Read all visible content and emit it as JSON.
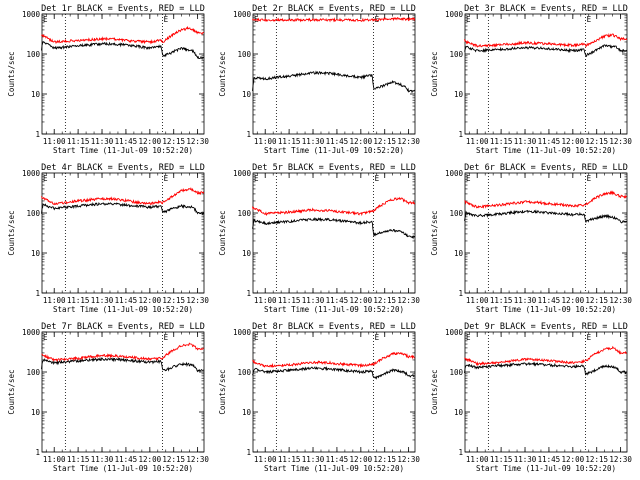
{
  "colors": {
    "background": "#ffffff",
    "axes": "#000000",
    "events": "#000000",
    "lld": "#ff0000"
  },
  "chart_data": [
    {
      "type": "line",
      "panel": "det-1r",
      "title": "Det 1r BLACK = Events, RED = LLD",
      "xlabel": "Start Time (11-Jul-09 10:52:20)",
      "ylabel": "Counts/sec",
      "x_ticks": [
        "11:00",
        "11:15",
        "11:30",
        "11:45",
        "12:00",
        "12:15",
        "12:30"
      ],
      "y_ticks": [
        "1",
        "10",
        "100",
        "1000"
      ],
      "y_scale": "log",
      "ylim": [
        1,
        1000
      ],
      "xlim": [
        "10:52:20",
        "12:34"
      ],
      "dotted_vlines": [
        "11:07",
        "12:08"
      ],
      "marker": "E",
      "series": [
        {
          "name": "Events",
          "color": "#000000",
          "x": [
            "10:52",
            "10:53",
            "11:00",
            "11:15",
            "11:30",
            "11:40",
            "11:50",
            "12:00",
            "12:07",
            "12:08",
            "12:12",
            "12:20",
            "12:27",
            "12:30"
          ],
          "y": [
            130,
            200,
            140,
            160,
            180,
            175,
            160,
            140,
            155,
            90,
            100,
            140,
            120,
            80
          ]
        },
        {
          "name": "LLD",
          "color": "#ff0000",
          "x": [
            "10:52",
            "10:53",
            "11:00",
            "11:15",
            "11:30",
            "11:40",
            "11:50",
            "12:00",
            "12:07",
            "12:08",
            "12:12",
            "12:20",
            "12:25",
            "12:30"
          ],
          "y": [
            300,
            280,
            200,
            220,
            240,
            230,
            210,
            200,
            220,
            190,
            260,
            400,
            450,
            330
          ]
        }
      ]
    },
    {
      "type": "line",
      "panel": "det-2r",
      "title": "Det 2r BLACK = Events, RED = LLD",
      "xlabel": "Start Time (11-Jul-09 10:52:20)",
      "ylabel": "Counts/sec",
      "x_ticks": [
        "11:00",
        "11:15",
        "11:30",
        "11:45",
        "12:00",
        "12:15",
        "12:30"
      ],
      "y_ticks": [
        "1",
        "10",
        "100",
        "1000"
      ],
      "y_scale": "log",
      "ylim": [
        1,
        1000
      ],
      "xlim": [
        "10:52:20",
        "12:34"
      ],
      "dotted_vlines": [
        "11:07",
        "12:08"
      ],
      "marker": "E",
      "series": [
        {
          "name": "Events",
          "color": "#000000",
          "x": [
            "10:52",
            "10:53",
            "11:00",
            "11:15",
            "11:30",
            "11:40",
            "11:50",
            "12:00",
            "12:07",
            "12:08",
            "12:12",
            "12:20",
            "12:27",
            "12:30"
          ],
          "y": [
            12,
            25,
            24,
            28,
            34,
            33,
            29,
            26,
            30,
            14,
            15,
            20,
            16,
            12
          ]
        },
        {
          "name": "LLD",
          "color": "#ff0000",
          "x": [
            "10:52",
            "10:53",
            "11:00",
            "11:15",
            "11:30",
            "11:40",
            "11:50",
            "12:00",
            "12:07",
            "12:08",
            "12:12",
            "12:20",
            "12:25",
            "12:30"
          ],
          "y": [
            750,
            720,
            700,
            710,
            715,
            710,
            705,
            700,
            710,
            700,
            720,
            760,
            770,
            740
          ]
        }
      ]
    },
    {
      "type": "line",
      "panel": "det-3r",
      "title": "Det 3r BLACK = Events, RED = LLD",
      "xlabel": "Start Time (11-Jul-09 10:52:20)",
      "ylabel": "Counts/sec",
      "x_ticks": [
        "11:00",
        "11:15",
        "11:30",
        "11:45",
        "12:00",
        "12:15",
        "12:30"
      ],
      "y_ticks": [
        "1",
        "10",
        "100",
        "1000"
      ],
      "y_scale": "log",
      "ylim": [
        1,
        1000
      ],
      "xlim": [
        "10:52:20",
        "12:34"
      ],
      "dotted_vlines": [
        "11:07",
        "12:08"
      ],
      "marker": "E",
      "series": [
        {
          "name": "Events",
          "color": "#000000",
          "x": [
            "10:52",
            "10:53",
            "11:00",
            "11:15",
            "11:30",
            "11:40",
            "11:50",
            "12:00",
            "12:07",
            "12:08",
            "12:12",
            "12:20",
            "12:27",
            "12:30"
          ],
          "y": [
            110,
            150,
            120,
            130,
            145,
            140,
            130,
            120,
            130,
            90,
            110,
            160,
            150,
            120
          ]
        },
        {
          "name": "LLD",
          "color": "#ff0000",
          "x": [
            "10:52",
            "10:53",
            "11:00",
            "11:15",
            "11:30",
            "11:40",
            "11:50",
            "12:00",
            "12:07",
            "12:08",
            "12:12",
            "12:20",
            "12:25",
            "12:30"
          ],
          "y": [
            220,
            200,
            160,
            170,
            190,
            185,
            175,
            165,
            180,
            160,
            190,
            280,
            300,
            240
          ]
        }
      ]
    },
    {
      "type": "line",
      "panel": "det-4r",
      "title": "Det 4r BLACK = Events, RED = LLD",
      "xlabel": "Start Time (11-Jul-09 10:52:20)",
      "ylabel": "Counts/sec",
      "x_ticks": [
        "11:00",
        "11:15",
        "11:30",
        "11:45",
        "12:00",
        "12:15",
        "12:30"
      ],
      "y_ticks": [
        "1",
        "10",
        "100",
        "1000"
      ],
      "y_scale": "log",
      "ylim": [
        1,
        1000
      ],
      "xlim": [
        "10:52:20",
        "12:34"
      ],
      "dotted_vlines": [
        "11:07",
        "12:08"
      ],
      "marker": "E",
      "series": [
        {
          "name": "Events",
          "color": "#000000",
          "x": [
            "10:52",
            "10:53",
            "11:00",
            "11:15",
            "11:30",
            "11:40",
            "11:50",
            "12:00",
            "12:07",
            "12:08",
            "12:12",
            "12:20",
            "12:27",
            "12:30"
          ],
          "y": [
            100,
            160,
            130,
            150,
            170,
            165,
            150,
            140,
            150,
            100,
            120,
            150,
            140,
            100
          ]
        },
        {
          "name": "LLD",
          "color": "#ff0000",
          "x": [
            "10:52",
            "10:53",
            "11:00",
            "11:15",
            "11:30",
            "11:40",
            "11:50",
            "12:00",
            "12:07",
            "12:08",
            "12:12",
            "12:20",
            "12:25",
            "12:30"
          ],
          "y": [
            250,
            240,
            170,
            200,
            230,
            220,
            190,
            170,
            190,
            180,
            230,
            360,
            400,
            320
          ]
        }
      ]
    },
    {
      "type": "line",
      "panel": "det-5r",
      "title": "Det 5r BLACK = Events, RED = LLD",
      "xlabel": "Start Time (11-Jul-09 10:52:20)",
      "ylabel": "Counts/sec",
      "x_ticks": [
        "11:00",
        "11:15",
        "11:30",
        "11:45",
        "12:00",
        "12:15",
        "12:30"
      ],
      "y_ticks": [
        "1",
        "10",
        "100",
        "1000"
      ],
      "y_scale": "log",
      "ylim": [
        1,
        1000
      ],
      "xlim": [
        "10:52:20",
        "12:34"
      ],
      "dotted_vlines": [
        "11:07",
        "12:08"
      ],
      "marker": "E",
      "series": [
        {
          "name": "Events",
          "color": "#000000",
          "x": [
            "10:52",
            "10:53",
            "11:00",
            "11:15",
            "11:30",
            "11:40",
            "11:50",
            "12:00",
            "12:07",
            "12:08",
            "12:12",
            "12:20",
            "12:27",
            "12:30"
          ],
          "y": [
            40,
            65,
            55,
            62,
            70,
            68,
            62,
            56,
            62,
            28,
            32,
            38,
            32,
            25
          ]
        },
        {
          "name": "LLD",
          "color": "#ff0000",
          "x": [
            "10:52",
            "10:53",
            "11:00",
            "11:15",
            "11:30",
            "11:40",
            "11:50",
            "12:00",
            "12:07",
            "12:08",
            "12:12",
            "12:20",
            "12:25",
            "12:30"
          ],
          "y": [
            140,
            130,
            95,
            105,
            120,
            115,
            105,
            95,
            110,
            110,
            150,
            220,
            230,
            180
          ]
        }
      ]
    },
    {
      "type": "line",
      "panel": "det-6r",
      "title": "Det 6r BLACK = Events, RED = LLD",
      "xlabel": "Start Time (11-Jul-09 10:52:20)",
      "ylabel": "Counts/sec",
      "x_ticks": [
        "11:00",
        "11:15",
        "11:30",
        "11:45",
        "12:00",
        "12:15",
        "12:30"
      ],
      "y_ticks": [
        "1",
        "10",
        "100",
        "1000"
      ],
      "y_scale": "log",
      "ylim": [
        1,
        1000
      ],
      "xlim": [
        "10:52:20",
        "12:34"
      ],
      "dotted_vlines": [
        "11:07",
        "12:08"
      ],
      "marker": "E",
      "series": [
        {
          "name": "Events",
          "color": "#000000",
          "x": [
            "10:52",
            "10:53",
            "11:00",
            "11:15",
            "11:30",
            "11:40",
            "11:50",
            "12:00",
            "12:07",
            "12:08",
            "12:12",
            "12:20",
            "12:27",
            "12:30"
          ],
          "y": [
            60,
            100,
            85,
            95,
            110,
            105,
            98,
            90,
            95,
            60,
            70,
            85,
            75,
            60
          ]
        },
        {
          "name": "LLD",
          "color": "#ff0000",
          "x": [
            "10:52",
            "10:53",
            "11:00",
            "11:15",
            "11:30",
            "11:40",
            "11:50",
            "12:00",
            "12:07",
            "12:08",
            "12:12",
            "12:20",
            "12:25",
            "12:30"
          ],
          "y": [
            200,
            180,
            140,
            160,
            190,
            180,
            165,
            150,
            160,
            160,
            210,
            300,
            320,
            260
          ]
        }
      ]
    },
    {
      "type": "line",
      "panel": "det-7r",
      "title": "Det 7r BLACK = Events, RED = LLD",
      "xlabel": "Start Time (11-Jul-09 10:52:20)",
      "ylabel": "Counts/sec",
      "x_ticks": [
        "11:00",
        "11:15",
        "11:30",
        "11:45",
        "12:00",
        "12:15",
        "12:30"
      ],
      "y_ticks": [
        "1",
        "10",
        "100",
        "1000"
      ],
      "y_scale": "log",
      "ylim": [
        1,
        1000
      ],
      "xlim": [
        "10:52:20",
        "12:34"
      ],
      "dotted_vlines": [
        "11:07",
        "12:08"
      ],
      "marker": "E",
      "series": [
        {
          "name": "Events",
          "color": "#000000",
          "x": [
            "10:52",
            "10:53",
            "11:00",
            "11:15",
            "11:30",
            "11:40",
            "11:50",
            "12:00",
            "12:07",
            "12:08",
            "12:12",
            "12:20",
            "12:27",
            "12:30"
          ],
          "y": [
            120,
            200,
            170,
            190,
            210,
            205,
            190,
            175,
            185,
            110,
            120,
            160,
            150,
            110
          ]
        },
        {
          "name": "LLD",
          "color": "#ff0000",
          "x": [
            "10:52",
            "10:53",
            "11:00",
            "11:15",
            "11:30",
            "11:40",
            "11:50",
            "12:00",
            "12:07",
            "12:08",
            "12:12",
            "12:20",
            "12:25",
            "12:30"
          ],
          "y": [
            280,
            260,
            200,
            220,
            260,
            250,
            230,
            210,
            225,
            220,
            300,
            450,
            500,
            380
          ]
        }
      ]
    },
    {
      "type": "line",
      "panel": "det-8r",
      "title": "Det 8r BLACK = Events, RED = LLD",
      "xlabel": "Start Time (11-Jul-09 10:52:20)",
      "ylabel": "Counts/sec",
      "x_ticks": [
        "11:00",
        "11:15",
        "11:30",
        "11:45",
        "12:00",
        "12:15",
        "12:30"
      ],
      "y_ticks": [
        "1",
        "10",
        "100",
        "1000"
      ],
      "y_scale": "log",
      "ylim": [
        1,
        1000
      ],
      "xlim": [
        "10:52:20",
        "12:34"
      ],
      "dotted_vlines": [
        "11:07",
        "12:08"
      ],
      "marker": "E",
      "series": [
        {
          "name": "Events",
          "color": "#000000",
          "x": [
            "10:52",
            "10:53",
            "11:00",
            "11:15",
            "11:30",
            "11:40",
            "11:50",
            "12:00",
            "12:07",
            "12:08",
            "12:12",
            "12:20",
            "12:27",
            "12:30"
          ],
          "y": [
            80,
            120,
            100,
            110,
            125,
            120,
            110,
            100,
            105,
            70,
            80,
            110,
            100,
            80
          ]
        },
        {
          "name": "LLD",
          "color": "#ff0000",
          "x": [
            "10:52",
            "10:53",
            "11:00",
            "11:15",
            "11:30",
            "11:40",
            "11:50",
            "12:00",
            "12:07",
            "12:08",
            "12:12",
            "12:20",
            "12:25",
            "12:30"
          ],
          "y": [
            200,
            180,
            140,
            150,
            175,
            170,
            155,
            145,
            155,
            155,
            200,
            280,
            300,
            240
          ]
        }
      ]
    },
    {
      "type": "line",
      "panel": "det-9r",
      "title": "Det 9r BLACK = Events, RED = LLD",
      "xlabel": "Start Time (11-Jul-09 10:52:20)",
      "ylabel": "Counts/sec",
      "x_ticks": [
        "11:00",
        "11:15",
        "11:30",
        "11:45",
        "12:00",
        "12:15",
        "12:30"
      ],
      "y_ticks": [
        "1",
        "10",
        "100",
        "1000"
      ],
      "y_scale": "log",
      "ylim": [
        1,
        1000
      ],
      "xlim": [
        "10:52:20",
        "12:34"
      ],
      "dotted_vlines": [
        "11:07",
        "12:08"
      ],
      "marker": "E",
      "series": [
        {
          "name": "Events",
          "color": "#000000",
          "x": [
            "10:52",
            "10:53",
            "11:00",
            "11:15",
            "11:30",
            "11:40",
            "11:50",
            "12:00",
            "12:07",
            "12:08",
            "12:12",
            "12:20",
            "12:27",
            "12:30"
          ],
          "y": [
            100,
            150,
            130,
            145,
            160,
            155,
            145,
            135,
            145,
            90,
            100,
            140,
            130,
            100
          ]
        },
        {
          "name": "LLD",
          "color": "#ff0000",
          "x": [
            "10:52",
            "10:53",
            "11:00",
            "11:15",
            "11:30",
            "11:40",
            "11:50",
            "12:00",
            "12:07",
            "12:08",
            "12:12",
            "12:20",
            "12:25",
            "12:30"
          ],
          "y": [
            230,
            210,
            160,
            175,
            210,
            200,
            185,
            170,
            185,
            185,
            250,
            370,
            400,
            300
          ]
        }
      ]
    }
  ]
}
